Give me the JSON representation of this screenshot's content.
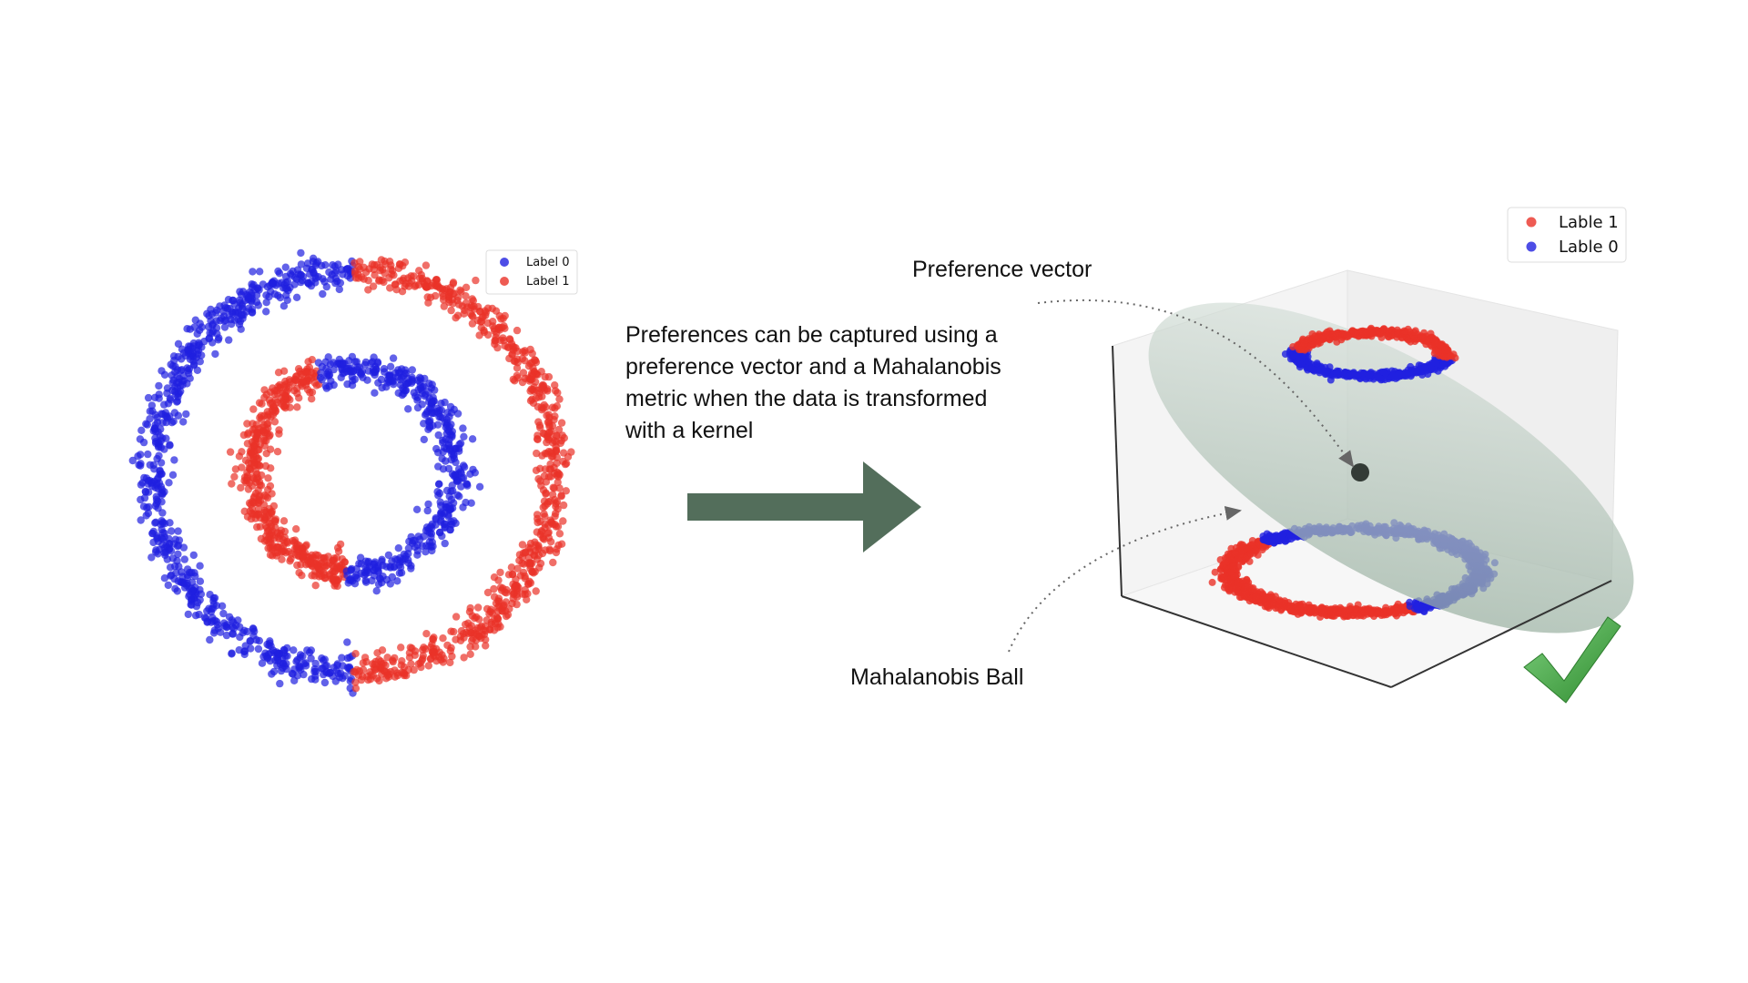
{
  "left_plot": {
    "legend": [
      {
        "label": "Label 0",
        "color": "#2020e0"
      },
      {
        "label": "Label 1",
        "color": "#ea3228"
      }
    ]
  },
  "caption": {
    "lines": [
      "Preferences can be captured using a",
      "preference vector and a Mahalanobis",
      "metric when the data is transformed",
      "with a kernel"
    ]
  },
  "arrow": {
    "color": "#536e5b"
  },
  "right_plot": {
    "legend": [
      {
        "label": "Lable 1",
        "color": "#ea3228"
      },
      {
        "label": "Lable 0",
        "color": "#2020e0"
      }
    ],
    "annotations": {
      "preference_vector": "Preference vector",
      "mahalanobis_ball": "Mahalanobis Ball"
    },
    "ellipse_color": "#8fa897",
    "point_color": "#333b36",
    "check_icon": "checkmark-icon",
    "check_color": "#3a9a3a"
  }
}
